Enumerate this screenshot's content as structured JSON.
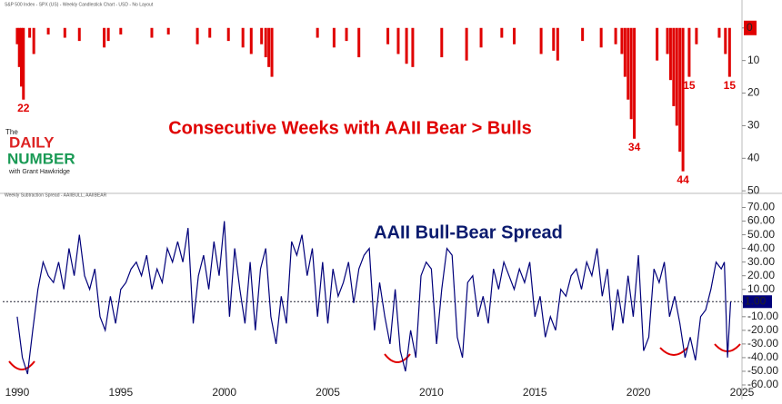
{
  "logo": {
    "line1": "The",
    "line2": "DAILY",
    "line3": "NUMBER",
    "line4": "with Grant Hawkridge"
  },
  "chart_data": [
    {
      "type": "bar",
      "subtitle": "S&P 500 Index - SPX (US) - Weekly Candlestick Chart - USD - No Layout",
      "title": "Consecutive Weeks with AAII Bear > Bulls",
      "color": "#e00000",
      "title_color": "#e00000",
      "x": [
        1990.0,
        1990.1,
        1990.2,
        1990.3,
        1990.6,
        1990.8,
        1991.5,
        1992.3,
        1993.0,
        1994.2,
        1994.4,
        1995.0,
        1996.5,
        1997.3,
        1998.7,
        1999.3,
        2000.2,
        2000.9,
        2001.3,
        2001.8,
        2002.0,
        2002.15,
        2002.3,
        2004.5,
        2005.3,
        2005.9,
        2006.5,
        2007.9,
        2008.4,
        2008.8,
        2009.1,
        2010.5,
        2011.7,
        2012.4,
        2013.4,
        2014.0,
        2015.3,
        2015.9,
        2016.1,
        2017.3,
        2018.2,
        2018.9,
        2019.2,
        2019.35,
        2019.5,
        2019.65,
        2019.8,
        2020.9,
        2021.4,
        2021.55,
        2021.7,
        2021.85,
        2022.0,
        2022.15,
        2022.45,
        2022.8,
        2023.9,
        2024.2,
        2024.4
      ],
      "values": [
        5,
        12,
        18,
        22,
        3,
        8,
        2,
        3,
        4,
        6,
        4,
        2,
        3,
        2,
        5,
        3,
        4,
        6,
        8,
        5,
        9,
        12,
        15,
        3,
        6,
        4,
        9,
        5,
        8,
        11,
        12,
        9,
        10,
        6,
        3,
        5,
        8,
        7,
        10,
        4,
        6,
        5,
        8,
        15,
        22,
        28,
        34,
        10,
        8,
        16,
        24,
        30,
        38,
        44,
        15,
        5,
        3,
        8,
        15
      ],
      "value_labels": [
        null,
        null,
        null,
        "22",
        null,
        null,
        null,
        null,
        null,
        null,
        null,
        null,
        null,
        null,
        null,
        null,
        null,
        null,
        null,
        null,
        null,
        null,
        null,
        null,
        null,
        null,
        null,
        null,
        null,
        null,
        null,
        null,
        null,
        null,
        null,
        null,
        null,
        null,
        null,
        null,
        null,
        null,
        null,
        null,
        null,
        null,
        "34",
        null,
        null,
        null,
        null,
        null,
        null,
        "44",
        "15",
        null,
        null,
        null,
        "15"
      ],
      "xlim": [
        1989.3,
        2025.0
      ],
      "ylim": [
        -3,
        50.5
      ],
      "y_inverted": true,
      "yticks": [
        0,
        10,
        20,
        30,
        40,
        50
      ],
      "last_value": 0
    },
    {
      "type": "line",
      "subtitle": "Weekly Subtraction Spread - AAIIBULL, AAIIBEAR",
      "title": "AAII Bull-Bear Spread",
      "color": "#00007a",
      "title_color": "#0a1a6e",
      "x": [
        1990.0,
        1990.25,
        1990.5,
        1990.75,
        1991.0,
        1991.25,
        1991.5,
        1991.75,
        1992.0,
        1992.25,
        1992.5,
        1992.75,
        1993.0,
        1993.25,
        1993.5,
        1993.75,
        1994.0,
        1994.25,
        1994.5,
        1994.75,
        1995.0,
        1995.25,
        1995.5,
        1995.75,
        1996.0,
        1996.25,
        1996.5,
        1996.75,
        1997.0,
        1997.25,
        1997.5,
        1997.75,
        1998.0,
        1998.25,
        1998.5,
        1998.75,
        1999.0,
        1999.25,
        1999.5,
        1999.75,
        2000.0,
        2000.25,
        2000.5,
        2000.75,
        2001.0,
        2001.25,
        2001.5,
        2001.75,
        2002.0,
        2002.25,
        2002.5,
        2002.75,
        2003.0,
        2003.25,
        2003.5,
        2003.75,
        2004.0,
        2004.25,
        2004.5,
        2004.75,
        2005.0,
        2005.25,
        2005.5,
        2005.75,
        2006.0,
        2006.25,
        2006.5,
        2006.75,
        2007.0,
        2007.25,
        2007.5,
        2007.75,
        2008.0,
        2008.25,
        2008.5,
        2008.75,
        2009.0,
        2009.25,
        2009.5,
        2009.75,
        2010.0,
        2010.25,
        2010.5,
        2010.75,
        2011.0,
        2011.25,
        2011.5,
        2011.75,
        2012.0,
        2012.25,
        2012.5,
        2012.75,
        2013.0,
        2013.25,
        2013.5,
        2013.75,
        2014.0,
        2014.25,
        2014.5,
        2014.75,
        2015.0,
        2015.25,
        2015.5,
        2015.75,
        2016.0,
        2016.25,
        2016.5,
        2016.75,
        2017.0,
        2017.25,
        2017.5,
        2017.75,
        2018.0,
        2018.25,
        2018.5,
        2018.75,
        2019.0,
        2019.25,
        2019.5,
        2019.75,
        2020.0,
        2020.25,
        2020.5,
        2020.75,
        2021.0,
        2021.25,
        2021.5,
        2021.75,
        2022.0,
        2022.25,
        2022.5,
        2022.75,
        2023.0,
        2023.25,
        2023.5,
        2023.75,
        2024.0,
        2024.15,
        2024.3,
        2024.45
      ],
      "values": [
        -10,
        -40,
        -52,
        -20,
        10,
        30,
        20,
        15,
        30,
        10,
        40,
        20,
        50,
        20,
        10,
        25,
        -10,
        -20,
        5,
        -15,
        10,
        15,
        25,
        30,
        20,
        35,
        10,
        25,
        15,
        40,
        30,
        45,
        30,
        55,
        -15,
        20,
        35,
        10,
        45,
        20,
        60,
        -10,
        40,
        10,
        -15,
        30,
        -20,
        25,
        40,
        -10,
        -30,
        5,
        -15,
        45,
        35,
        50,
        20,
        40,
        -10,
        30,
        -15,
        25,
        5,
        15,
        30,
        0,
        25,
        35,
        40,
        -20,
        15,
        -10,
        -30,
        10,
        -35,
        -50,
        -20,
        -40,
        20,
        30,
        25,
        -30,
        10,
        40,
        35,
        -25,
        -40,
        15,
        20,
        -10,
        5,
        -15,
        25,
        10,
        30,
        20,
        10,
        25,
        15,
        30,
        -10,
        5,
        -25,
        -10,
        -20,
        10,
        5,
        20,
        25,
        10,
        30,
        20,
        40,
        5,
        25,
        -20,
        10,
        -15,
        20,
        -10,
        35,
        -35,
        -25,
        25,
        15,
        30,
        -10,
        5,
        -15,
        -40,
        -25,
        -42,
        -10,
        -5,
        10,
        30,
        25,
        30,
        -40,
        1
      ],
      "xlim": [
        1989.3,
        2025.0
      ],
      "ylim": [
        -62,
        75
      ],
      "xticks": [
        1990,
        1995,
        2000,
        2005,
        2010,
        2015,
        2020,
        2025
      ],
      "yticks": [
        {
          "value": 70,
          "label": "70.00"
        },
        {
          "value": 60,
          "label": "60.00"
        },
        {
          "value": 50,
          "label": "50.00"
        },
        {
          "value": 40,
          "label": "40.00"
        },
        {
          "value": 30,
          "label": "30.00"
        },
        {
          "value": 20,
          "label": "20.00"
        },
        {
          "value": 10,
          "label": "10.00"
        },
        {
          "value": 0,
          "label": "0.00"
        },
        {
          "value": -10,
          "label": "-10.00"
        },
        {
          "value": -20,
          "label": "-20.00"
        },
        {
          "value": -30,
          "label": "-30.00"
        },
        {
          "value": -40,
          "label": "-40.00"
        },
        {
          "value": -50,
          "label": "-50.00"
        },
        {
          "value": -60,
          "label": "-60.00"
        }
      ],
      "last_value": {
        "value": 1,
        "label": "1.00"
      }
    }
  ]
}
